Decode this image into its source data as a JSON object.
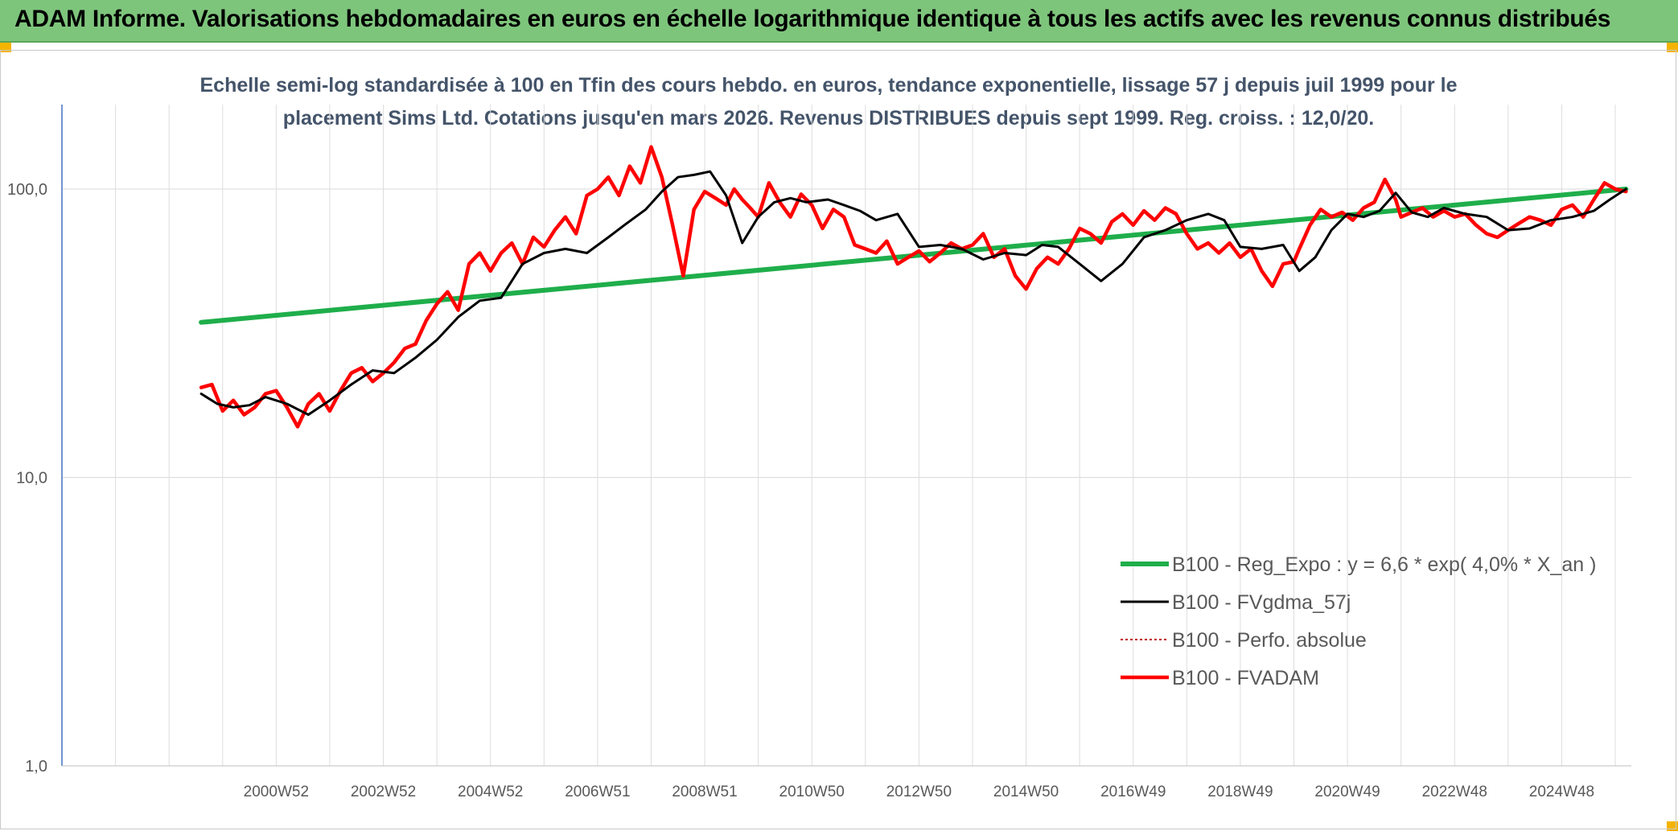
{
  "header": {
    "title": "ADAM Informe. Valorisations hebdomadaires en euros en échelle logarithmique identique à tous les actifs avec les revenus connus distribués"
  },
  "colors": {
    "header_bg": "#7ec57c",
    "trend": "#1fae4b",
    "smooth": "#000000",
    "absolute": "#c00000",
    "adam": "#ff0000",
    "subtitle": "#44546a"
  },
  "chart_data": {
    "type": "line",
    "title": "Echelle semi-log standardisée à 100 en Tfin des cours hebdo. en euros, tendance exponentielle, lissage 57 j depuis juil 1999 pour le placement Sims Ltd. Cotations jusqu'en mars 2026. Revenus DISTRIBUES depuis sept 1999. Reg. croiss. : 12,0/20.",
    "title_lines": [
      "Echelle semi-log standardisée à 100 en Tfin des cours hebdo. en euros, tendance exponentielle, lissage 57 j depuis juil 1999 pour le",
      "placement Sims Ltd. Cotations jusqu'en mars 2026. Revenus DISTRIBUES depuis sept 1999. Reg. croiss. : 12,0/20."
    ],
    "y_scale": "log",
    "ylim": [
      1,
      200
    ],
    "y_ticks": [
      {
        "value": 1,
        "label": "1,0"
      },
      {
        "value": 10,
        "label": "10,0"
      },
      {
        "value": 100,
        "label": "100,0"
      }
    ],
    "xlim": [
      1997.0,
      2026.3
    ],
    "x_ticks": [
      {
        "value": 2001.0,
        "label": "2000W52"
      },
      {
        "value": 2003.0,
        "label": "2002W52"
      },
      {
        "value": 2005.0,
        "label": "2004W52"
      },
      {
        "value": 2007.0,
        "label": "2006W51"
      },
      {
        "value": 2009.0,
        "label": "2008W51"
      },
      {
        "value": 2011.0,
        "label": "2010W50"
      },
      {
        "value": 2013.0,
        "label": "2012W50"
      },
      {
        "value": 2015.0,
        "label": "2014W50"
      },
      {
        "value": 2017.0,
        "label": "2016W49"
      },
      {
        "value": 2019.0,
        "label": "2018W49"
      },
      {
        "value": 2021.0,
        "label": "2020W49"
      },
      {
        "value": 2023.0,
        "label": "2022W48"
      },
      {
        "value": 2025.0,
        "label": "2024W48"
      }
    ],
    "grid": true,
    "legend_position": "bottom-right",
    "series": [
      {
        "name": "B100 - Reg_Expo : y = 6,6 * exp( 4,0% *  X_an )",
        "style": "trend",
        "x": [
          1999.6,
          2026.2
        ],
        "y": [
          34.5,
          100.0
        ]
      },
      {
        "name": "B100 - FVgdma_57j",
        "style": "smooth",
        "x": [
          1999.6,
          1999.9,
          2000.2,
          2000.5,
          2000.8,
          2001.2,
          2001.6,
          2002.0,
          2002.4,
          2002.8,
          2003.2,
          2003.6,
          2004.0,
          2004.4,
          2004.8,
          2005.2,
          2005.6,
          2006.0,
          2006.4,
          2006.8,
          2007.2,
          2007.5,
          2007.9,
          2008.2,
          2008.5,
          2008.8,
          2009.1,
          2009.4,
          2009.7,
          2010.0,
          2010.3,
          2010.6,
          2010.9,
          2011.3,
          2011.6,
          2011.9,
          2012.2,
          2012.6,
          2013.0,
          2013.4,
          2013.8,
          2014.2,
          2014.6,
          2015.0,
          2015.3,
          2015.6,
          2016.0,
          2016.4,
          2016.8,
          2017.2,
          2017.6,
          2018.0,
          2018.4,
          2018.7,
          2019.0,
          2019.4,
          2019.8,
          2020.1,
          2020.4,
          2020.7,
          2021.0,
          2021.3,
          2021.6,
          2021.9,
          2022.2,
          2022.5,
          2022.8,
          2023.2,
          2023.6,
          2024.0,
          2024.4,
          2024.8,
          2025.2,
          2025.6,
          2025.9,
          2026.2
        ],
        "y": [
          19.5,
          18.0,
          17.5,
          17.8,
          19.0,
          18.0,
          16.5,
          18.5,
          21.0,
          23.5,
          23.0,
          26.0,
          30.0,
          36.0,
          41.0,
          42.0,
          55.0,
          60.0,
          62.0,
          60.0,
          68.0,
          75.0,
          85.0,
          98.0,
          110.0,
          112.0,
          115.0,
          95.0,
          65.0,
          80.0,
          90.0,
          93.0,
          90.0,
          92.0,
          88.0,
          84.0,
          78.0,
          82.0,
          63.0,
          64.0,
          62.0,
          57.0,
          60.0,
          59.0,
          64.0,
          63.0,
          55.0,
          48.0,
          55.0,
          68.0,
          72.0,
          78.0,
          82.0,
          78.0,
          63.0,
          62.0,
          64.0,
          52.0,
          58.0,
          72.0,
          82.0,
          80.0,
          84.0,
          97.0,
          83.0,
          80.0,
          86.0,
          82.0,
          80.0,
          72.0,
          73.0,
          78.0,
          80.0,
          84.0,
          92.0,
          100.0
        ]
      },
      {
        "name": "B100 - Perfo. absolue",
        "style": "dotted",
        "x": [],
        "y": []
      },
      {
        "name": "B100 - FVADAM",
        "style": "adam",
        "x": [
          1999.6,
          1999.8,
          2000.0,
          2000.2,
          2000.4,
          2000.6,
          2000.8,
          2001.0,
          2001.2,
          2001.4,
          2001.6,
          2001.8,
          2002.0,
          2002.2,
          2002.4,
          2002.6,
          2002.8,
          2003.0,
          2003.2,
          2003.4,
          2003.6,
          2003.8,
          2004.0,
          2004.2,
          2004.4,
          2004.6,
          2004.8,
          2005.0,
          2005.2,
          2005.4,
          2005.6,
          2005.8,
          2006.0,
          2006.2,
          2006.4,
          2006.6,
          2006.8,
          2007.0,
          2007.2,
          2007.4,
          2007.6,
          2007.8,
          2008.0,
          2008.2,
          2008.4,
          2008.6,
          2008.8,
          2009.0,
          2009.2,
          2009.4,
          2009.55,
          2009.7,
          2009.85,
          2010.0,
          2010.2,
          2010.4,
          2010.6,
          2010.8,
          2011.0,
          2011.2,
          2011.4,
          2011.6,
          2011.8,
          2012.0,
          2012.2,
          2012.4,
          2012.6,
          2012.8,
          2013.0,
          2013.2,
          2013.4,
          2013.6,
          2013.8,
          2014.0,
          2014.2,
          2014.4,
          2014.6,
          2014.8,
          2015.0,
          2015.2,
          2015.4,
          2015.6,
          2015.8,
          2016.0,
          2016.2,
          2016.4,
          2016.6,
          2016.8,
          2017.0,
          2017.2,
          2017.4,
          2017.6,
          2017.8,
          2018.0,
          2018.2,
          2018.4,
          2018.6,
          2018.8,
          2019.0,
          2019.2,
          2019.4,
          2019.6,
          2019.8,
          2020.0,
          2020.1,
          2020.3,
          2020.5,
          2020.7,
          2020.9,
          2021.1,
          2021.3,
          2021.5,
          2021.7,
          2021.9,
          2022.0,
          2022.2,
          2022.4,
          2022.6,
          2022.8,
          2023.0,
          2023.2,
          2023.4,
          2023.6,
          2023.8,
          2024.0,
          2024.2,
          2024.4,
          2024.6,
          2024.8,
          2025.0,
          2025.2,
          2025.4,
          2025.6,
          2025.8,
          2026.0,
          2026.2
        ],
        "y": [
          20.5,
          21.0,
          17.0,
          18.5,
          16.5,
          17.5,
          19.5,
          20.0,
          17.5,
          15.0,
          18.0,
          19.5,
          17.0,
          20.0,
          23.0,
          24.0,
          21.5,
          23.0,
          25.0,
          28.0,
          29.0,
          35.0,
          40.0,
          44.0,
          38.0,
          55.0,
          60.0,
          52.0,
          60.0,
          65.0,
          55.0,
          68.0,
          63.0,
          72.0,
          80.0,
          70.0,
          95.0,
          100.0,
          110.0,
          95.0,
          120.0,
          105.0,
          140.0,
          110.0,
          75.0,
          50.0,
          85.0,
          98.0,
          93.0,
          88.0,
          100.0,
          92.0,
          86.0,
          80.0,
          105.0,
          90.0,
          80.0,
          96.0,
          88.0,
          73.0,
          85.0,
          80.0,
          64.0,
          62.0,
          60.0,
          66.0,
          55.0,
          58.0,
          61.0,
          56.0,
          60.0,
          65.0,
          62.0,
          64.0,
          70.0,
          58.0,
          62.0,
          50.0,
          45.0,
          53.0,
          58.0,
          55.0,
          62.0,
          73.0,
          70.0,
          65.0,
          77.0,
          82.0,
          75.0,
          84.0,
          78.0,
          86.0,
          82.0,
          70.0,
          62.0,
          65.0,
          60.0,
          65.0,
          58.0,
          62.0,
          52.0,
          46.0,
          55.0,
          56.0,
          62.0,
          75.0,
          85.0,
          80.0,
          83.0,
          78.0,
          86.0,
          90.0,
          108.0,
          92.0,
          80.0,
          83.0,
          86.0,
          80.0,
          84.0,
          80.0,
          82.0,
          75.0,
          70.0,
          68.0,
          72.0,
          76.0,
          80.0,
          78.0,
          75.0,
          85.0,
          88.0,
          80.0,
          92.0,
          105.0,
          100.0,
          98.0
        ]
      }
    ]
  }
}
